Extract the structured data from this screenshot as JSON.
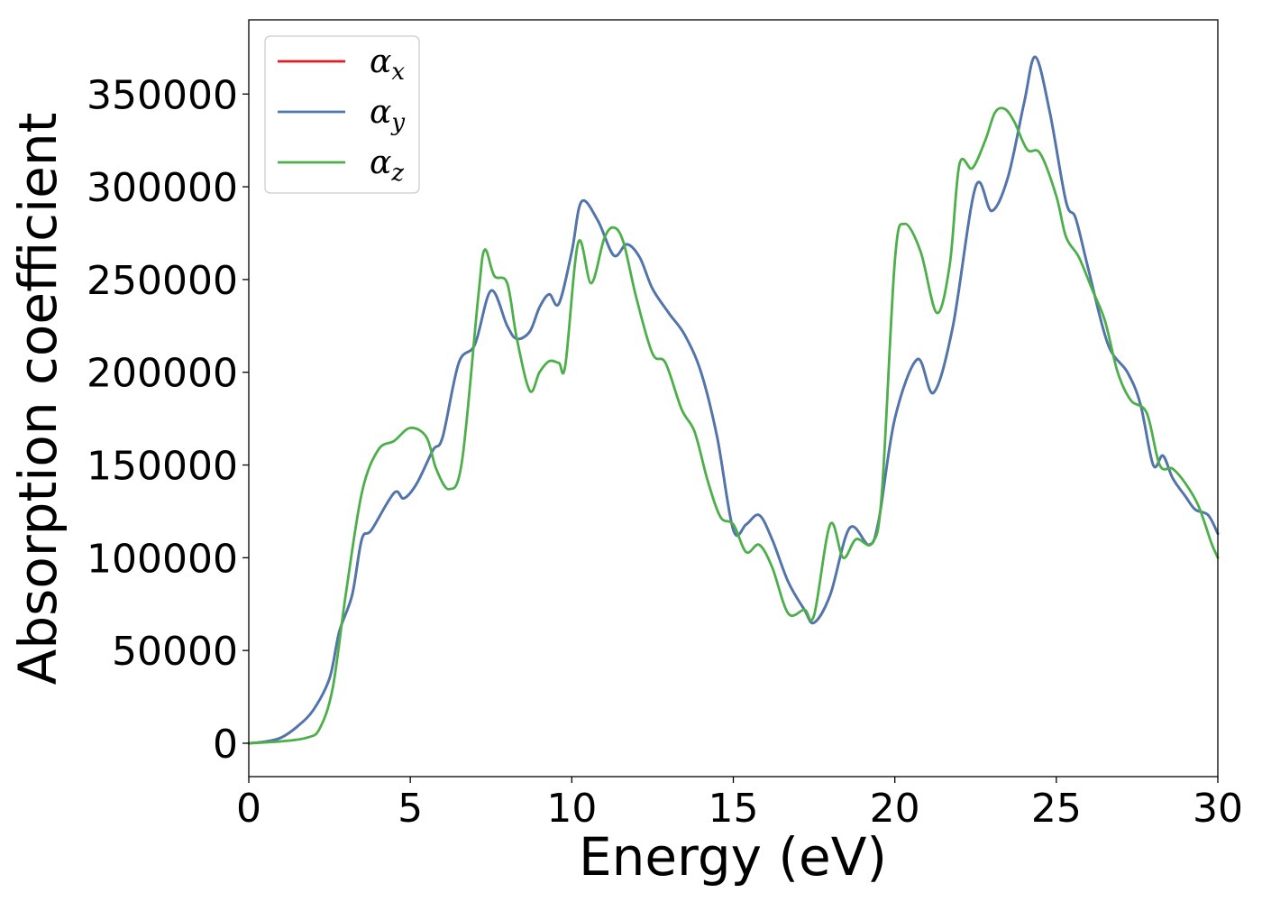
{
  "chart_data": {
    "type": "line",
    "title": "",
    "xlabel": "Energy (eV)",
    "ylabel": "Absorption coefficient",
    "xlim": [
      0,
      30
    ],
    "ylim": [
      -18000,
      390000
    ],
    "xticks": [
      0,
      5,
      10,
      15,
      20,
      25,
      30
    ],
    "yticks": [
      0,
      50000,
      100000,
      150000,
      200000,
      250000,
      300000,
      350000
    ],
    "grid": false,
    "legend_position": "top-left",
    "series": [
      {
        "name": "α_x",
        "sym": "α",
        "sub": "x",
        "color": "#e41a1c",
        "points": [
          [
            0,
            0
          ],
          [
            0.5,
            800
          ],
          [
            1,
            3000
          ],
          [
            1.5,
            9000
          ],
          [
            2,
            18000
          ],
          [
            2.5,
            35000
          ],
          [
            2.8,
            60000
          ],
          [
            3.2,
            80000
          ],
          [
            3.5,
            110000
          ],
          [
            3.8,
            115000
          ],
          [
            4.5,
            135000
          ],
          [
            4.8,
            132000
          ],
          [
            5.2,
            140000
          ],
          [
            5.7,
            158000
          ],
          [
            6,
            165000
          ],
          [
            6.5,
            205000
          ],
          [
            7,
            215000
          ],
          [
            7.5,
            244000
          ],
          [
            8,
            225000
          ],
          [
            8.3,
            218000
          ],
          [
            8.7,
            222000
          ],
          [
            9,
            235000
          ],
          [
            9.3,
            242000
          ],
          [
            9.6,
            237000
          ],
          [
            10,
            265000
          ],
          [
            10.3,
            292000
          ],
          [
            10.8,
            282000
          ],
          [
            11.3,
            263000
          ],
          [
            11.7,
            269000
          ],
          [
            12.1,
            262000
          ],
          [
            12.5,
            245000
          ],
          [
            13,
            232000
          ],
          [
            13.5,
            220000
          ],
          [
            14,
            200000
          ],
          [
            14.5,
            165000
          ],
          [
            15,
            115000
          ],
          [
            15.4,
            118000
          ],
          [
            15.8,
            123000
          ],
          [
            16.2,
            110000
          ],
          [
            16.7,
            87000
          ],
          [
            17.2,
            72000
          ],
          [
            17.5,
            65000
          ],
          [
            18,
            80000
          ],
          [
            18.6,
            116000
          ],
          [
            19.2,
            107000
          ],
          [
            19.5,
            120000
          ],
          [
            20,
            175000
          ],
          [
            20.7,
            207000
          ],
          [
            21.2,
            189000
          ],
          [
            21.8,
            225000
          ],
          [
            22.5,
            300000
          ],
          [
            23,
            287000
          ],
          [
            23.5,
            305000
          ],
          [
            24,
            345000
          ],
          [
            24.35,
            370000
          ],
          [
            24.8,
            340000
          ],
          [
            25.3,
            292000
          ],
          [
            25.6,
            283000
          ],
          [
            26,
            255000
          ],
          [
            26.6,
            215000
          ],
          [
            27.2,
            200000
          ],
          [
            27.6,
            183000
          ],
          [
            28,
            150000
          ],
          [
            28.3,
            155000
          ],
          [
            28.6,
            143000
          ],
          [
            29,
            133000
          ],
          [
            29.3,
            126000
          ],
          [
            29.7,
            123000
          ],
          [
            30,
            113000
          ]
        ]
      },
      {
        "name": "α_y",
        "sym": "α",
        "sub": "y",
        "color": "#4a78b0",
        "points": [
          [
            0,
            0
          ],
          [
            0.5,
            800
          ],
          [
            1,
            3000
          ],
          [
            1.5,
            9000
          ],
          [
            2,
            18000
          ],
          [
            2.5,
            35000
          ],
          [
            2.8,
            60000
          ],
          [
            3.2,
            80000
          ],
          [
            3.5,
            110000
          ],
          [
            3.8,
            115000
          ],
          [
            4.5,
            135000
          ],
          [
            4.8,
            132000
          ],
          [
            5.2,
            140000
          ],
          [
            5.7,
            158000
          ],
          [
            6,
            165000
          ],
          [
            6.5,
            205000
          ],
          [
            7,
            215000
          ],
          [
            7.5,
            244000
          ],
          [
            8,
            225000
          ],
          [
            8.3,
            218000
          ],
          [
            8.7,
            222000
          ],
          [
            9,
            235000
          ],
          [
            9.3,
            242000
          ],
          [
            9.6,
            237000
          ],
          [
            10,
            265000
          ],
          [
            10.3,
            292000
          ],
          [
            10.8,
            282000
          ],
          [
            11.3,
            263000
          ],
          [
            11.7,
            269000
          ],
          [
            12.1,
            262000
          ],
          [
            12.5,
            245000
          ],
          [
            13,
            232000
          ],
          [
            13.5,
            220000
          ],
          [
            14,
            200000
          ],
          [
            14.5,
            165000
          ],
          [
            15,
            115000
          ],
          [
            15.4,
            118000
          ],
          [
            15.8,
            123000
          ],
          [
            16.2,
            110000
          ],
          [
            16.7,
            87000
          ],
          [
            17.2,
            72000
          ],
          [
            17.5,
            65000
          ],
          [
            18,
            80000
          ],
          [
            18.6,
            116000
          ],
          [
            19.2,
            107000
          ],
          [
            19.5,
            120000
          ],
          [
            20,
            175000
          ],
          [
            20.7,
            207000
          ],
          [
            21.2,
            189000
          ],
          [
            21.8,
            225000
          ],
          [
            22.5,
            300000
          ],
          [
            23,
            287000
          ],
          [
            23.5,
            305000
          ],
          [
            24,
            345000
          ],
          [
            24.35,
            370000
          ],
          [
            24.8,
            340000
          ],
          [
            25.3,
            292000
          ],
          [
            25.6,
            283000
          ],
          [
            26,
            255000
          ],
          [
            26.6,
            215000
          ],
          [
            27.2,
            200000
          ],
          [
            27.6,
            183000
          ],
          [
            28,
            150000
          ],
          [
            28.3,
            155000
          ],
          [
            28.6,
            143000
          ],
          [
            29,
            133000
          ],
          [
            29.3,
            126000
          ],
          [
            29.7,
            123000
          ],
          [
            30,
            113000
          ]
        ]
      },
      {
        "name": "α_z",
        "sym": "α",
        "sub": "z",
        "color": "#4daf4a",
        "points": [
          [
            0,
            0
          ],
          [
            1,
            1000
          ],
          [
            1.8,
            3000
          ],
          [
            2.2,
            8000
          ],
          [
            2.6,
            30000
          ],
          [
            3,
            80000
          ],
          [
            3.5,
            135000
          ],
          [
            4,
            158000
          ],
          [
            4.5,
            163000
          ],
          [
            5,
            170000
          ],
          [
            5.5,
            165000
          ],
          [
            5.8,
            148000
          ],
          [
            6.2,
            137000
          ],
          [
            6.6,
            152000
          ],
          [
            7.1,
            240000
          ],
          [
            7.3,
            266000
          ],
          [
            7.6,
            252000
          ],
          [
            8,
            248000
          ],
          [
            8.3,
            218000
          ],
          [
            8.7,
            190000
          ],
          [
            9,
            200000
          ],
          [
            9.3,
            206000
          ],
          [
            9.6,
            205000
          ],
          [
            9.8,
            204000
          ],
          [
            10.2,
            270000
          ],
          [
            10.6,
            248000
          ],
          [
            11,
            272000
          ],
          [
            11.3,
            278000
          ],
          [
            11.6,
            270000
          ],
          [
            12,
            240000
          ],
          [
            12.5,
            210000
          ],
          [
            12.9,
            205000
          ],
          [
            13.4,
            180000
          ],
          [
            13.8,
            168000
          ],
          [
            14.2,
            142000
          ],
          [
            14.6,
            122000
          ],
          [
            15,
            118000
          ],
          [
            15.4,
            103000
          ],
          [
            15.8,
            107000
          ],
          [
            16.2,
            95000
          ],
          [
            16.7,
            70000
          ],
          [
            17.2,
            72000
          ],
          [
            17.5,
            69000
          ],
          [
            18,
            118000
          ],
          [
            18.4,
            100000
          ],
          [
            18.8,
            110000
          ],
          [
            19.3,
            108000
          ],
          [
            19.6,
            135000
          ],
          [
            20,
            260000
          ],
          [
            20.3,
            280000
          ],
          [
            20.8,
            265000
          ],
          [
            21.3,
            232000
          ],
          [
            21.7,
            258000
          ],
          [
            22,
            312000
          ],
          [
            22.4,
            310000
          ],
          [
            22.8,
            325000
          ],
          [
            23.1,
            340000
          ],
          [
            23.4,
            342000
          ],
          [
            23.7,
            335000
          ],
          [
            24.1,
            320000
          ],
          [
            24.5,
            318000
          ],
          [
            25,
            295000
          ],
          [
            25.3,
            273000
          ],
          [
            25.7,
            262000
          ],
          [
            26.1,
            245000
          ],
          [
            26.5,
            228000
          ],
          [
            26.9,
            200000
          ],
          [
            27.3,
            185000
          ],
          [
            27.8,
            178000
          ],
          [
            28.2,
            150000
          ],
          [
            28.6,
            148000
          ],
          [
            29,
            140000
          ],
          [
            29.4,
            128000
          ],
          [
            29.8,
            108000
          ],
          [
            30,
            100000
          ]
        ]
      }
    ]
  }
}
